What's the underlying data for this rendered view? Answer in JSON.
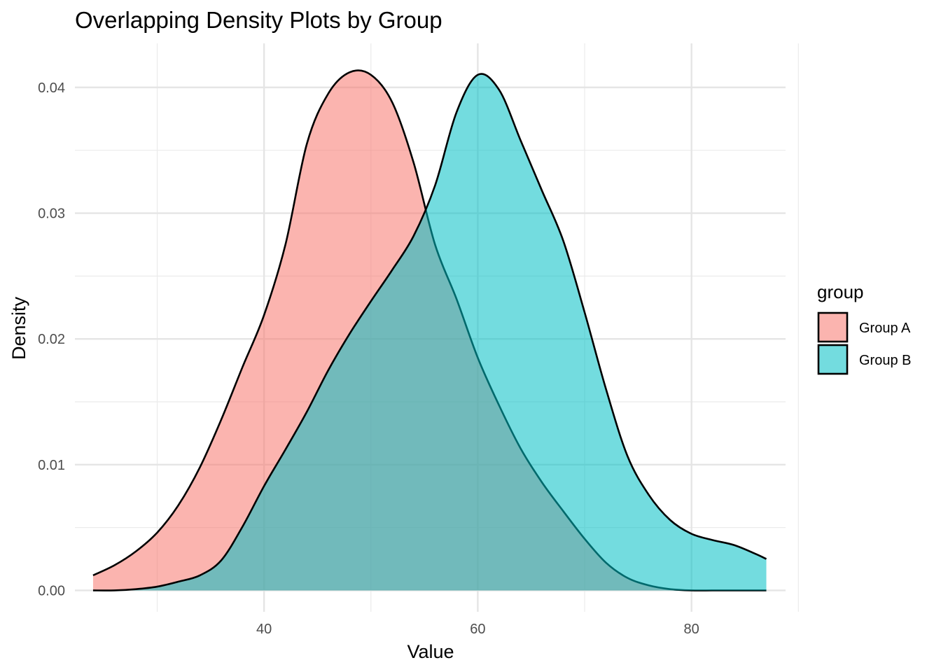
{
  "chart_data": {
    "type": "area",
    "title": "Overlapping Density Plots by Group",
    "xlabel": "Value",
    "ylabel": "Density",
    "xlim": [
      22.3,
      88.8
    ],
    "ylim": [
      -0.0017,
      0.0435
    ],
    "x_ticks": [
      40,
      60,
      80
    ],
    "x_tick_labels": [
      "40",
      "60",
      "80"
    ],
    "y_ticks": [
      0.0,
      0.01,
      0.02,
      0.03,
      0.04
    ],
    "y_tick_labels": [
      "0.00",
      "0.01",
      "0.02",
      "0.03",
      "0.04"
    ],
    "x_minor_ticks": [
      30,
      50,
      70,
      90
    ],
    "y_minor_ticks": [
      0.005,
      0.015,
      0.025,
      0.035
    ],
    "grid": true,
    "legend": {
      "title": "group",
      "position": "right"
    },
    "series": [
      {
        "name": "Group A",
        "color": "#F8766D",
        "x": [
          24,
          26,
          28,
          30,
          32,
          34,
          36,
          38,
          40,
          42,
          44,
          46,
          48,
          50,
          52,
          54,
          56,
          58,
          60,
          62,
          64,
          66,
          68,
          70,
          72,
          74,
          76,
          78,
          80,
          82,
          84,
          86,
          87
        ],
        "y": [
          0.0012,
          0.002,
          0.0031,
          0.0046,
          0.0068,
          0.0098,
          0.0136,
          0.0178,
          0.0219,
          0.0275,
          0.0355,
          0.0395,
          0.0412,
          0.041,
          0.0388,
          0.034,
          0.0275,
          0.0232,
          0.0185,
          0.0147,
          0.0113,
          0.0086,
          0.0063,
          0.0041,
          0.0022,
          0.001,
          0.0004,
          0.0001,
          0.0,
          0.0,
          0.0,
          0.0,
          0.0
        ]
      },
      {
        "name": "Group B",
        "color": "#00BFC4",
        "x": [
          24,
          26,
          28,
          30,
          32,
          34,
          36,
          38,
          40,
          42,
          44,
          46,
          48,
          50,
          52,
          54,
          56,
          58,
          60,
          62,
          64,
          66,
          68,
          70,
          72,
          74,
          76,
          78,
          80,
          82,
          84,
          86,
          87
        ],
        "y": [
          0.0,
          0.0,
          0.0001,
          0.0003,
          0.0007,
          0.0012,
          0.0024,
          0.0051,
          0.0083,
          0.0112,
          0.0142,
          0.0175,
          0.0204,
          0.023,
          0.0255,
          0.0282,
          0.0322,
          0.038,
          0.041,
          0.0398,
          0.0358,
          0.0318,
          0.0278,
          0.0221,
          0.016,
          0.0107,
          0.0076,
          0.0056,
          0.0045,
          0.004,
          0.0036,
          0.0029,
          0.0025
        ]
      }
    ]
  }
}
